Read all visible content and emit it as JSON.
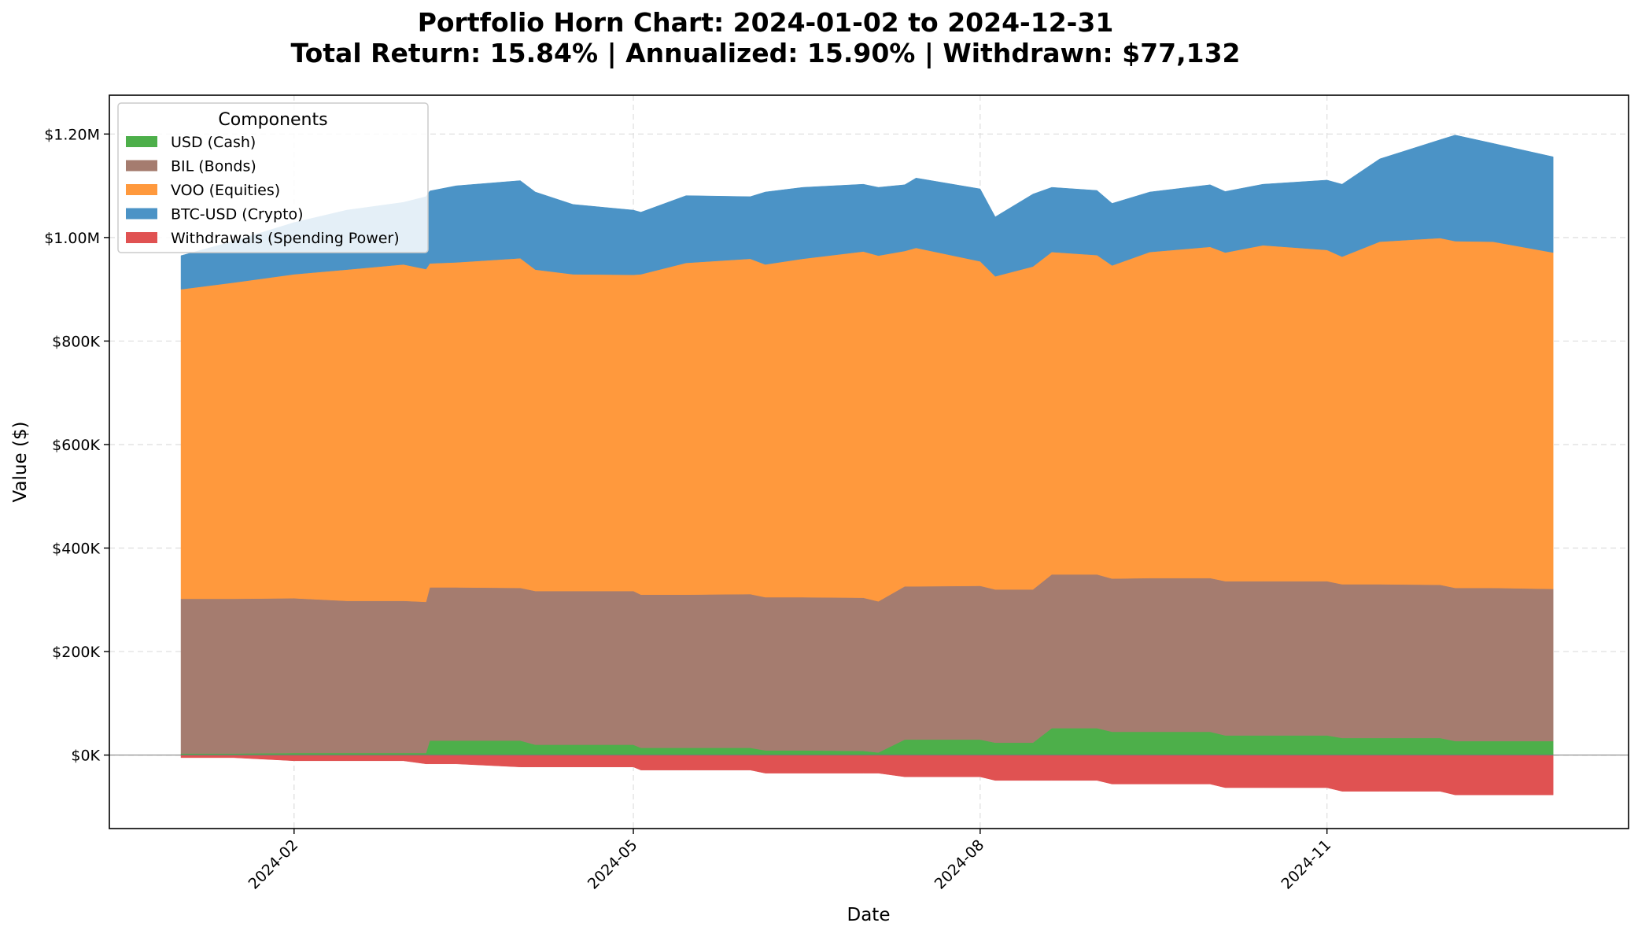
{
  "chart_data": {
    "type": "area",
    "title": "Portfolio Horn Chart: 2024-01-02 to 2024-12-31",
    "subtitle": "Total Return: 15.84% | Annualized: 15.90% | Withdrawn: $77,132",
    "xlabel": "Date",
    "ylabel": "Value ($)",
    "xlim": [
      "2023-12-14",
      "2025-01-20"
    ],
    "ylim": [
      -142000,
      1275000
    ],
    "x_ticks": [
      {
        "date": "2024-02-01",
        "label": "2024-02"
      },
      {
        "date": "2024-05-01",
        "label": "2024-05"
      },
      {
        "date": "2024-08-01",
        "label": "2024-08"
      },
      {
        "date": "2024-11-01",
        "label": "2024-11"
      }
    ],
    "y_ticks": [
      {
        "value": 0,
        "label": "$0K"
      },
      {
        "value": 200000,
        "label": "$200K"
      },
      {
        "value": 400000,
        "label": "$400K"
      },
      {
        "value": 600000,
        "label": "$600K"
      },
      {
        "value": 800000,
        "label": "$800K"
      },
      {
        "value": 1000000,
        "label": "$1.00M"
      },
      {
        "value": 1200000,
        "label": "$1.20M"
      }
    ],
    "grid": true,
    "legend": {
      "title": "Components",
      "position": "upper-left"
    },
    "dates": [
      "2024-01-02",
      "2024-01-16",
      "2024-02-01",
      "2024-02-15",
      "2024-03-01",
      "2024-03-07",
      "2024-03-08",
      "2024-03-15",
      "2024-04-01",
      "2024-04-05",
      "2024-04-15",
      "2024-05-01",
      "2024-05-03",
      "2024-05-15",
      "2024-06-01",
      "2024-06-05",
      "2024-06-15",
      "2024-07-01",
      "2024-07-05",
      "2024-07-12",
      "2024-07-15",
      "2024-08-01",
      "2024-08-05",
      "2024-08-15",
      "2024-08-20",
      "2024-09-01",
      "2024-09-05",
      "2024-09-15",
      "2024-10-01",
      "2024-10-05",
      "2024-10-15",
      "2024-11-01",
      "2024-11-05",
      "2024-11-15",
      "2024-12-01",
      "2024-12-05",
      "2024-12-15",
      "2024-12-31"
    ],
    "series": [
      {
        "name": "USD (Cash)",
        "color": "#4daf4a",
        "values": [
          3000,
          3000,
          4000,
          4000,
          4000,
          4000,
          28000,
          28000,
          28000,
          20000,
          20000,
          20000,
          14000,
          14000,
          14000,
          9000,
          9000,
          8000,
          5000,
          30000,
          30000,
          30000,
          24000,
          24000,
          52000,
          52000,
          45000,
          45000,
          45000,
          38000,
          38000,
          38000,
          33000,
          33000,
          33000,
          27000,
          27000,
          27000
        ]
      },
      {
        "name": "BIL (Bonds)",
        "color": "#a57c6f",
        "values": [
          299000,
          299000,
          299000,
          294000,
          294000,
          292000,
          296000,
          296000,
          295000,
          297000,
          297000,
          297000,
          296000,
          296000,
          297000,
          296000,
          296000,
          296000,
          292000,
          296000,
          296000,
          297000,
          296000,
          296000,
          297000,
          297000,
          296000,
          297000,
          297000,
          298000,
          298000,
          298000,
          297000,
          297000,
          296000,
          296000,
          296000,
          294000
        ]
      },
      {
        "name": "VOO (Equities)",
        "color": "#ff993d",
        "values": [
          598000,
          611000,
          626000,
          640000,
          650000,
          643000,
          626000,
          628000,
          637000,
          621000,
          612000,
          611000,
          619000,
          641000,
          648000,
          643000,
          654000,
          669000,
          668000,
          648000,
          654000,
          627000,
          605000,
          624000,
          623000,
          617000,
          605000,
          630000,
          640000,
          635000,
          649000,
          640000,
          633000,
          662000,
          670000,
          670000,
          669000,
          650000
        ]
      },
      {
        "name": "BTC-USD (Crypto)",
        "color": "#4b93c6",
        "values": [
          65000,
          80000,
          100000,
          115000,
          120000,
          140000,
          140000,
          148000,
          150000,
          150000,
          135000,
          125000,
          120000,
          130000,
          120000,
          140000,
          138000,
          130000,
          132000,
          128000,
          135000,
          140000,
          115000,
          140000,
          125000,
          125000,
          120000,
          116000,
          120000,
          118000,
          118000,
          135000,
          140000,
          160000,
          190000,
          205000,
          190000,
          185000
        ]
      },
      {
        "name": "Withdrawals (Spending Power)",
        "color": "#e05252",
        "values": [
          -5000,
          -5000,
          -11000,
          -11000,
          -11000,
          -17000,
          -17000,
          -17000,
          -23000,
          -23000,
          -23000,
          -23000,
          -29000,
          -29000,
          -29000,
          -35000,
          -35000,
          -35000,
          -35000,
          -42000,
          -42000,
          -42000,
          -49000,
          -49000,
          -49000,
          -49000,
          -56000,
          -56000,
          -56000,
          -63000,
          -63000,
          -63000,
          -70000,
          -70000,
          -70000,
          -77000,
          -77000,
          -77000
        ]
      }
    ]
  }
}
